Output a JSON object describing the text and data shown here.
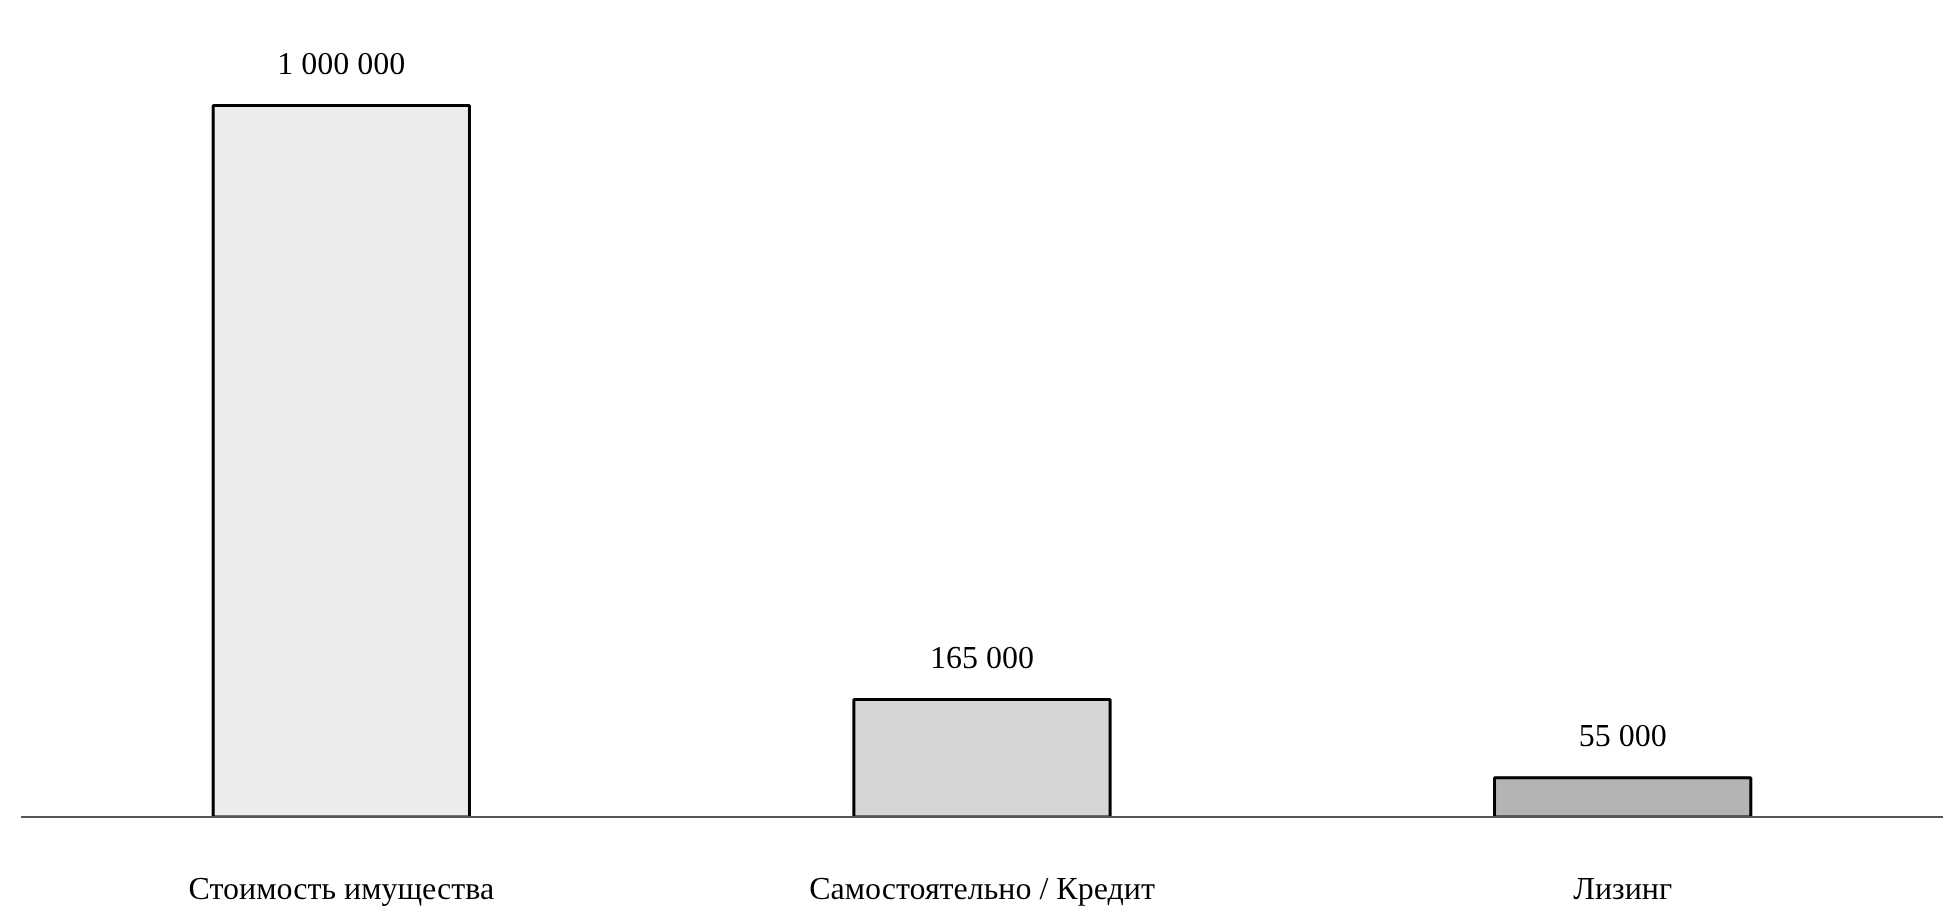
{
  "chart_data": {
    "type": "bar",
    "categories": [
      "Стоимость имущества",
      "Самостоятельно / Кредит",
      "Лизинг"
    ],
    "values": [
      1000000,
      165000,
      55000
    ],
    "value_labels": [
      "1 000 000",
      "165 000",
      "55 000"
    ],
    "colors": [
      "#ececec",
      "#d6d6d6",
      "#b4b4b4"
    ],
    "grid": false,
    "tick_labels": "x"
  }
}
